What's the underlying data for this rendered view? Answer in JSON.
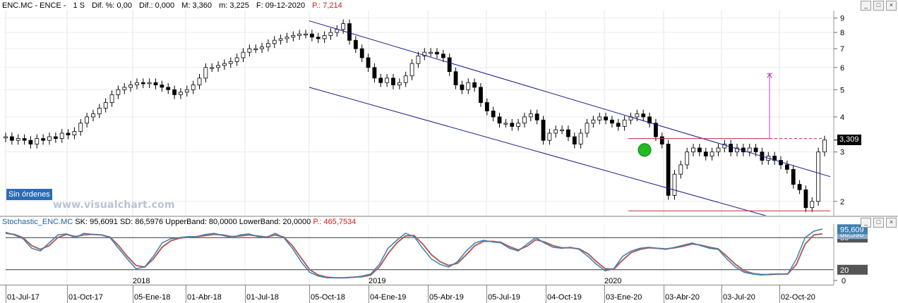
{
  "header": {
    "symbol": "ENC.MC - ENCE -",
    "interval": "1 S",
    "dif_pct": "Dif. %: 0,00",
    "dif": "Dif.: 0,000",
    "max": "M: 3,360",
    "min": "m: 3,225",
    "date": "F: 09-12-2020",
    "pval": "P.: 7,214"
  },
  "window_buttons": [
    "_",
    "□",
    "×"
  ],
  "badge": "Sin órdenes",
  "watermark": "www.visualchart.com",
  "price_tag": "3,309",
  "osc_header": {
    "name": "Stochastic_ENC.MC",
    "sk": "SK: 95,6091",
    "sd": "SD: 86,5976",
    "upper": "UpperBand: 80,0000",
    "lower": "LowerBand: 20,0000",
    "p": "P.: 465,7534"
  },
  "osc_tags": {
    "sk": "95,609",
    "sd": "86,598",
    "upper": "80",
    "lower": "20"
  },
  "colors": {
    "sk": "#3d7fb0",
    "sd": "#e2553b",
    "channel": "#1a1a8c",
    "support": "#c0303a",
    "target": "#cc33cc",
    "marker": "#22bb22"
  },
  "chart_data": [
    {
      "type": "candlestick",
      "title": "ENC.MC - ENCE -",
      "yscale": "log",
      "ylim": [
        1.8,
        9.3
      ],
      "y_ticks": [
        "9",
        "8",
        "7",
        "6",
        "5",
        "4",
        "3",
        "2"
      ],
      "x_ticks": [
        "01-Jul-17",
        "01-Oct-17",
        "05-Ene-18",
        "01-Abr-18",
        "01-Jul-18",
        "05-Oct-18",
        "04-Ene-19",
        "05-Abr-19",
        "05-Jul-19",
        "04-Oct-19",
        "03-Ene-20",
        "03-Abr-20",
        "03-Jul-20",
        "02-Oct-20"
      ],
      "year_labels": [
        "2018",
        "2019",
        "2020"
      ],
      "last_price": 3.309,
      "support_level": 1.85,
      "resistance_level": 3.35,
      "target_level": 5.7,
      "closes": [
        3.4,
        3.3,
        3.35,
        3.3,
        3.2,
        3.35,
        3.3,
        3.4,
        3.35,
        3.5,
        3.45,
        3.55,
        3.8,
        4.0,
        4.1,
        4.3,
        4.5,
        4.8,
        5.0,
        5.1,
        5.2,
        5.3,
        5.25,
        5.3,
        5.2,
        5.1,
        5.0,
        4.8,
        4.9,
        5.0,
        5.2,
        5.5,
        6.0,
        6.0,
        6.1,
        6.2,
        6.3,
        6.5,
        6.8,
        7.0,
        7.0,
        7.1,
        7.3,
        7.5,
        7.6,
        7.7,
        7.8,
        7.9,
        7.9,
        7.7,
        7.6,
        7.8,
        8.0,
        8.2,
        8.6,
        7.5,
        7.0,
        6.5,
        6.0,
        5.5,
        5.3,
        5.5,
        5.2,
        5.3,
        5.6,
        6.2,
        6.6,
        6.8,
        6.8,
        6.7,
        6.5,
        5.8,
        5.2,
        5.0,
        5.3,
        5.1,
        4.5,
        4.2,
        4.0,
        3.8,
        3.8,
        3.7,
        3.8,
        4.0,
        4.1,
        3.9,
        3.3,
        3.5,
        3.6,
        3.6,
        3.4,
        3.2,
        3.5,
        3.8,
        3.9,
        4.0,
        3.9,
        3.8,
        3.7,
        3.9,
        4.0,
        4.1,
        4.0,
        3.8,
        3.4,
        3.2,
        2.1,
        2.5,
        2.7,
        3.0,
        3.1,
        3.0,
        2.9,
        3.0,
        3.1,
        3.2,
        3.0,
        3.1,
        3.0,
        3.1,
        3.0,
        2.8,
        2.9,
        2.8,
        2.7,
        2.6,
        2.3,
        2.2,
        1.9,
        2.0,
        3.0,
        3.309
      ]
    },
    {
      "type": "line",
      "title": "Stochastic_ENC.MC",
      "ylim": [
        0,
        100
      ],
      "y_ticks": [
        "0"
      ],
      "bands": [
        80,
        20
      ],
      "series": [
        {
          "name": "SK",
          "values": [
            90,
            85,
            78,
            60,
            55,
            70,
            85,
            87,
            80,
            88,
            86,
            85,
            80,
            60,
            40,
            22,
            25,
            45,
            70,
            78,
            80,
            82,
            82,
            86,
            88,
            84,
            80,
            85,
            87,
            82,
            80,
            88,
            80,
            60,
            35,
            15,
            8,
            5,
            5,
            5,
            6,
            8,
            12,
            30,
            60,
            75,
            88,
            82,
            60,
            40,
            30,
            25,
            35,
            55,
            70,
            75,
            72,
            70,
            60,
            55,
            68,
            80,
            70,
            62,
            60,
            62,
            58,
            45,
            30,
            18,
            22,
            45,
            55,
            60,
            62,
            60,
            58,
            62,
            66,
            70,
            65,
            60,
            58,
            40,
            25,
            15,
            12,
            10,
            12,
            12,
            12,
            40,
            80,
            92,
            96
          ]
        },
        {
          "name": "SD",
          "values": [
            88,
            86,
            80,
            65,
            58,
            65,
            80,
            86,
            82,
            85,
            86,
            85,
            81,
            65,
            45,
            28,
            25,
            40,
            62,
            74,
            79,
            81,
            82,
            84,
            86,
            85,
            82,
            83,
            85,
            83,
            81,
            85,
            81,
            65,
            42,
            20,
            10,
            6,
            5,
            5,
            6,
            7,
            10,
            25,
            50,
            70,
            83,
            84,
            68,
            48,
            35,
            28,
            32,
            48,
            65,
            73,
            73,
            71,
            63,
            57,
            64,
            76,
            72,
            65,
            61,
            61,
            59,
            50,
            35,
            22,
            21,
            38,
            52,
            58,
            61,
            60,
            59,
            61,
            64,
            68,
            66,
            62,
            59,
            45,
            30,
            18,
            13,
            11,
            11,
            12,
            12,
            30,
            68,
            85,
            87
          ]
        }
      ]
    }
  ]
}
